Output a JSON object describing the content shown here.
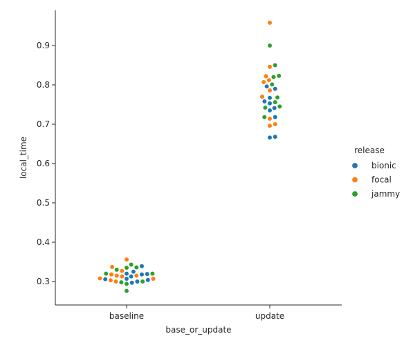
{
  "chart_data": {
    "type": "scatter",
    "subtype": "swarm",
    "title": "",
    "xlabel": "base_or_update",
    "ylabel": "local_time",
    "categories": [
      "baseline",
      "update"
    ],
    "ylim": [
      0.24,
      0.98
    ],
    "yticks": [
      0.3,
      0.4,
      0.5,
      0.6,
      0.7,
      0.8,
      0.9
    ],
    "grid": false,
    "legend": {
      "title": "release",
      "placement": "right"
    },
    "series": [
      {
        "name": "bionic",
        "color": "#1f77b4",
        "points": [
          {
            "x": "baseline",
            "y": 0.339
          },
          {
            "x": "baseline",
            "y": 0.325
          },
          {
            "x": "baseline",
            "y": 0.32
          },
          {
            "x": "baseline",
            "y": 0.319
          },
          {
            "x": "baseline",
            "y": 0.318
          },
          {
            "x": "baseline",
            "y": 0.313
          },
          {
            "x": "baseline",
            "y": 0.307
          },
          {
            "x": "baseline",
            "y": 0.306
          },
          {
            "x": "baseline",
            "y": 0.304
          },
          {
            "x": "baseline",
            "y": 0.3
          },
          {
            "x": "baseline",
            "y": 0.297
          },
          {
            "x": "update",
            "y": 0.796
          },
          {
            "x": "update",
            "y": 0.79
          },
          {
            "x": "update",
            "y": 0.767
          },
          {
            "x": "update",
            "y": 0.758
          },
          {
            "x": "update",
            "y": 0.753
          },
          {
            "x": "update",
            "y": 0.741
          },
          {
            "x": "update",
            "y": 0.735
          },
          {
            "x": "update",
            "y": 0.718
          },
          {
            "x": "update",
            "y": 0.668
          },
          {
            "x": "update",
            "y": 0.666
          }
        ]
      },
      {
        "name": "focal",
        "color": "#ff7f0e",
        "points": [
          {
            "x": "baseline",
            "y": 0.356
          },
          {
            "x": "baseline",
            "y": 0.337
          },
          {
            "x": "baseline",
            "y": 0.327
          },
          {
            "x": "baseline",
            "y": 0.318
          },
          {
            "x": "baseline",
            "y": 0.315
          },
          {
            "x": "baseline",
            "y": 0.315
          },
          {
            "x": "baseline",
            "y": 0.313
          },
          {
            "x": "baseline",
            "y": 0.308
          },
          {
            "x": "baseline",
            "y": 0.307
          },
          {
            "x": "baseline",
            "y": 0.303
          },
          {
            "x": "baseline",
            "y": 0.3
          },
          {
            "x": "update",
            "y": 0.958
          },
          {
            "x": "update",
            "y": 0.846
          },
          {
            "x": "update",
            "y": 0.822
          },
          {
            "x": "update",
            "y": 0.812
          },
          {
            "x": "update",
            "y": 0.807
          },
          {
            "x": "update",
            "y": 0.786
          },
          {
            "x": "update",
            "y": 0.77
          },
          {
            "x": "update",
            "y": 0.714
          },
          {
            "x": "update",
            "y": 0.7
          },
          {
            "x": "update",
            "y": 0.696
          }
        ]
      },
      {
        "name": "jammy",
        "color": "#2ca02c",
        "points": [
          {
            "x": "baseline",
            "y": 0.343
          },
          {
            "x": "baseline",
            "y": 0.336
          },
          {
            "x": "baseline",
            "y": 0.335
          },
          {
            "x": "baseline",
            "y": 0.33
          },
          {
            "x": "baseline",
            "y": 0.32
          },
          {
            "x": "baseline",
            "y": 0.32
          },
          {
            "x": "baseline",
            "y": 0.3
          },
          {
            "x": "baseline",
            "y": 0.298
          },
          {
            "x": "baseline",
            "y": 0.294
          },
          {
            "x": "baseline",
            "y": 0.276
          },
          {
            "x": "update",
            "y": 0.9
          },
          {
            "x": "update",
            "y": 0.85
          },
          {
            "x": "update",
            "y": 0.823
          },
          {
            "x": "update",
            "y": 0.82
          },
          {
            "x": "update",
            "y": 0.801
          },
          {
            "x": "update",
            "y": 0.768
          },
          {
            "x": "update",
            "y": 0.756
          },
          {
            "x": "update",
            "y": 0.745
          },
          {
            "x": "update",
            "y": 0.742
          },
          {
            "x": "update",
            "y": 0.718
          }
        ]
      }
    ]
  }
}
